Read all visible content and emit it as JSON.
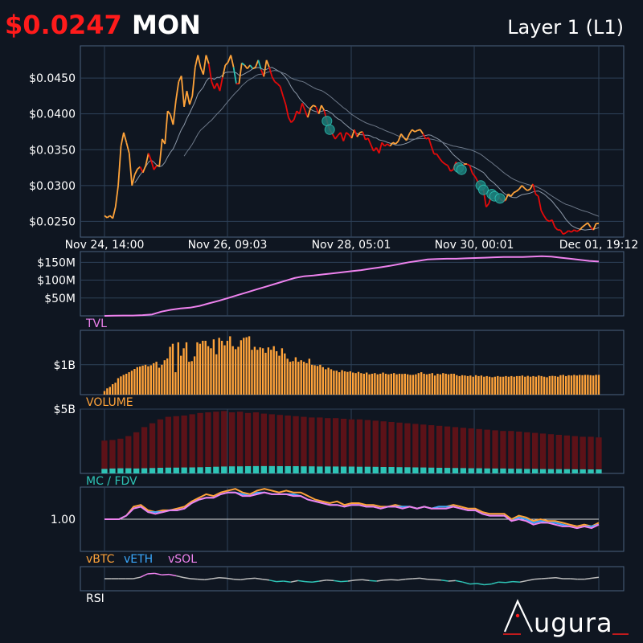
{
  "header": {
    "price": "$0.0247",
    "symbol": "MON",
    "category": "Layer 1 (L1)"
  },
  "brand": {
    "name": "ugura"
  },
  "colors": {
    "background": "#0f1621",
    "panel_border": "#4b6280",
    "grid": "#2f4259",
    "up": "#ffa33a",
    "down": "#e50a0a",
    "teal": "#2ec4b6",
    "tvl": "#ee82ee",
    "volume": "#ffa33a",
    "mc": "#5c1218",
    "fdv": "#2ec4b6",
    "vbtc": "#ffa33a",
    "veth": "#3aa9ff",
    "vsol": "#ee82ee",
    "rsi": "#bbbbbb",
    "price_red": "#ff1b1b"
  },
  "chart_data": [
    {
      "type": "line",
      "panel": "price",
      "x_ticks": [
        "Nov 24, 14:00",
        "Nov 26, 09:03",
        "Nov 28, 05:01",
        "Nov 30, 00:01",
        "Dec 01, 19:12"
      ],
      "y_ticks": [
        "$0.0450",
        "$0.0400",
        "$0.0350",
        "$0.0300",
        "$0.0250"
      ],
      "ylim": [
        0.0228,
        0.0495
      ],
      "price": [
        0.0258,
        0.0255,
        0.0258,
        0.0254,
        0.027,
        0.03,
        0.0355,
        0.0374,
        0.036,
        0.0345,
        0.03,
        0.0315,
        0.0323,
        0.0326,
        0.0318,
        0.0328,
        0.0345,
        0.0335,
        0.0322,
        0.0328,
        0.0327,
        0.0365,
        0.0358,
        0.0404,
        0.0399,
        0.0385,
        0.0418,
        0.0445,
        0.0453,
        0.041,
        0.0432,
        0.0413,
        0.0425,
        0.0465,
        0.0482,
        0.0465,
        0.0455,
        0.0482,
        0.047,
        0.0445,
        0.0435,
        0.0443,
        0.0432,
        0.0451,
        0.0468,
        0.0472,
        0.0482,
        0.0465,
        0.0442,
        0.0442,
        0.0471,
        0.0468,
        0.0463,
        0.0468,
        0.0463,
        0.0465,
        0.0475,
        0.0462,
        0.0452,
        0.0475,
        0.0465,
        0.0452,
        0.0445,
        0.0442,
        0.0438,
        0.0425,
        0.0413,
        0.0395,
        0.0388,
        0.0392,
        0.0404,
        0.04,
        0.0415,
        0.0405,
        0.0395,
        0.0408,
        0.0412,
        0.041,
        0.04,
        0.0412,
        0.0405,
        0.039,
        0.0378,
        0.0372,
        0.0365,
        0.037,
        0.0374,
        0.0362,
        0.0374,
        0.0371,
        0.0366,
        0.0378,
        0.0368,
        0.0374,
        0.0375,
        0.0364,
        0.0366,
        0.0357,
        0.0348,
        0.0353,
        0.0345,
        0.036,
        0.0355,
        0.0358,
        0.0355,
        0.036,
        0.0358,
        0.0362,
        0.0372,
        0.0367,
        0.0363,
        0.0372,
        0.0378,
        0.0375,
        0.0377,
        0.0378,
        0.0372,
        0.0365,
        0.0367,
        0.0355,
        0.0344,
        0.0344,
        0.0338,
        0.0333,
        0.033,
        0.0328,
        0.032,
        0.0322,
        0.0333,
        0.0325,
        0.0322,
        0.033,
        0.033,
        0.0328,
        0.0317,
        0.0312,
        0.0305,
        0.03,
        0.0294,
        0.027,
        0.0275,
        0.0288,
        0.0285,
        0.0285,
        0.0282,
        0.0278,
        0.0279,
        0.0288,
        0.0285,
        0.029,
        0.0292,
        0.0295,
        0.03,
        0.0296,
        0.0293,
        0.0295,
        0.0302,
        0.0288,
        0.0285,
        0.0265,
        0.0258,
        0.0252,
        0.025,
        0.0252,
        0.0242,
        0.0238,
        0.0238,
        0.0232,
        0.0234,
        0.0237,
        0.0235,
        0.0238,
        0.0236,
        0.0238,
        0.0242,
        0.0245,
        0.0248,
        0.0242,
        0.0238,
        0.0247,
        0.0247
      ]
    },
    {
      "type": "area",
      "panel": "tvl",
      "label": "TVL",
      "y_ticks": [
        "$150M",
        "$100M",
        "$50M"
      ],
      "ylim": [
        0,
        180
      ],
      "values": [
        0,
        0.5,
        1,
        1,
        2,
        4,
        12,
        17,
        21,
        23,
        28,
        35,
        42,
        50,
        58,
        66,
        74,
        82,
        90,
        98,
        106,
        111,
        113,
        116,
        119,
        122,
        125,
        128,
        132,
        136,
        140,
        145,
        150,
        154,
        158,
        159,
        160,
        160,
        161,
        162,
        163,
        164,
        165,
        165,
        165,
        166,
        167,
        166,
        163,
        160,
        157,
        154,
        152
      ]
    },
    {
      "type": "bar",
      "panel": "volume",
      "label": "VOLUME",
      "y_ticks": [
        "$1B"
      ],
      "ylim": [
        0,
        2.15
      ],
      "values": [
        0.12,
        0.21,
        0.26,
        0.35,
        0.4,
        0.55,
        0.61,
        0.66,
        0.7,
        0.75,
        0.8,
        0.86,
        0.92,
        0.94,
        0.97,
        1.0,
        0.95,
        0.98,
        1.05,
        1.1,
        0.9,
        1.0,
        1.15,
        1.21,
        1.6,
        1.7,
        0.75,
        1.75,
        1.3,
        1.55,
        1.75,
        1.1,
        1.12,
        1.28,
        1.75,
        1.7,
        1.8,
        1.8,
        1.62,
        1.55,
        1.85,
        1.35,
        1.9,
        1.8,
        1.65,
        1.8,
        1.95,
        1.62,
        1.52,
        1.6,
        1.82,
        1.9,
        1.92,
        1.95,
        1.5,
        1.6,
        1.5,
        1.58,
        1.55,
        1.4,
        1.58,
        1.5,
        1.62,
        1.45,
        1.3,
        1.55,
        1.38,
        1.2,
        1.1,
        1.12,
        1.25,
        1.1,
        1.15,
        1.1,
        1.05,
        1.2,
        1.0,
        0.98,
        0.96,
        1.0,
        0.92,
        0.85,
        0.9,
        0.85,
        0.8,
        0.8,
        0.75,
        0.82,
        0.78,
        0.76,
        0.78,
        0.74,
        0.72,
        0.76,
        0.72,
        0.7,
        0.74,
        0.68,
        0.7,
        0.72,
        0.68,
        0.7,
        0.74,
        0.7,
        0.68,
        0.7,
        0.72,
        0.68,
        0.7,
        0.69,
        0.7,
        0.68,
        0.66,
        0.66,
        0.68,
        0.72,
        0.75,
        0.7,
        0.68,
        0.7,
        0.72,
        0.64,
        0.7,
        0.68,
        0.72,
        0.7,
        0.68,
        0.7,
        0.7,
        0.65,
        0.62,
        0.65,
        0.64,
        0.62,
        0.64,
        0.6,
        0.65,
        0.62,
        0.64,
        0.6,
        0.62,
        0.6,
        0.58,
        0.6,
        0.62,
        0.6,
        0.6,
        0.62,
        0.6,
        0.62,
        0.6,
        0.62,
        0.62,
        0.64,
        0.6,
        0.63,
        0.6,
        0.62,
        0.6,
        0.64,
        0.62,
        0.6,
        0.58,
        0.62,
        0.63,
        0.62,
        0.6,
        0.65,
        0.66,
        0.62,
        0.65,
        0.64,
        0.66,
        0.64,
        0.66,
        0.65,
        0.66,
        0.66,
        0.65,
        0.64,
        0.66,
        0.66
      ]
    },
    {
      "type": "bar",
      "panel": "mc_fdv",
      "label": "MC / FDV",
      "y_ticks": [
        "$5B"
      ],
      "ylim": [
        0,
        5.0
      ],
      "series": [
        {
          "name": "MC",
          "values": [
            0.35,
            0.38,
            0.4,
            0.4,
            0.38,
            0.4,
            0.42,
            0.44,
            0.45,
            0.45,
            0.46,
            0.47,
            0.48,
            0.5,
            0.52,
            0.54,
            0.55,
            0.55,
            0.56,
            0.57,
            0.57,
            0.57,
            0.56,
            0.56,
            0.56,
            0.55,
            0.55,
            0.54,
            0.54,
            0.54,
            0.53,
            0.53,
            0.52,
            0.52,
            0.51,
            0.5,
            0.5,
            0.49,
            0.48,
            0.47,
            0.46,
            0.45,
            0.44,
            0.43,
            0.42,
            0.41,
            0.4,
            0.4,
            0.39,
            0.38,
            0.38,
            0.37,
            0.36,
            0.35,
            0.35,
            0.34,
            0.34,
            0.33,
            0.33,
            0.32,
            0.32,
            0.31,
            0.31
          ]
        },
        {
          "name": "FDV",
          "values": [
            2.55,
            2.6,
            2.7,
            2.9,
            3.2,
            3.6,
            3.9,
            4.2,
            4.4,
            4.45,
            4.5,
            4.6,
            4.7,
            4.75,
            4.8,
            4.85,
            4.75,
            4.8,
            4.7,
            4.75,
            4.65,
            4.6,
            4.55,
            4.5,
            4.45,
            4.4,
            4.35,
            4.35,
            4.3,
            4.3,
            4.25,
            4.2,
            4.2,
            4.15,
            4.1,
            4.05,
            4.0,
            3.95,
            3.9,
            3.85,
            3.8,
            3.75,
            3.7,
            3.65,
            3.6,
            3.55,
            3.5,
            3.45,
            3.4,
            3.35,
            3.3,
            3.3,
            3.25,
            3.2,
            3.15,
            3.1,
            3.05,
            3.0,
            2.95,
            2.9,
            2.85,
            2.85,
            2.8
          ]
        }
      ]
    },
    {
      "type": "line",
      "panel": "relative",
      "y_ticks": [
        "1.00"
      ],
      "ylim": [
        0.82,
        1.18
      ],
      "series": [
        {
          "name": "vBTC",
          "values": [
            1.0,
            1.0,
            1.0,
            1.02,
            1.07,
            1.08,
            1.05,
            1.04,
            1.05,
            1.05,
            1.06,
            1.07,
            1.1,
            1.12,
            1.14,
            1.13,
            1.15,
            1.16,
            1.17,
            1.15,
            1.14,
            1.16,
            1.17,
            1.16,
            1.15,
            1.16,
            1.15,
            1.15,
            1.13,
            1.11,
            1.1,
            1.09,
            1.1,
            1.08,
            1.09,
            1.09,
            1.08,
            1.08,
            1.07,
            1.07,
            1.08,
            1.07,
            1.07,
            1.06,
            1.07,
            1.06,
            1.07,
            1.07,
            1.08,
            1.07,
            1.06,
            1.06,
            1.04,
            1.03,
            1.03,
            1.03,
            1.0,
            1.02,
            1.01,
            0.99,
            1.0,
            0.99,
            0.99,
            0.98,
            0.97,
            0.96,
            0.97,
            0.96,
            0.98
          ]
        },
        {
          "name": "vETH",
          "values": [
            1.0,
            1.0,
            1.0,
            1.02,
            1.06,
            1.07,
            1.04,
            1.04,
            1.04,
            1.05,
            1.05,
            1.06,
            1.09,
            1.11,
            1.12,
            1.12,
            1.14,
            1.15,
            1.15,
            1.14,
            1.13,
            1.15,
            1.15,
            1.14,
            1.14,
            1.14,
            1.14,
            1.13,
            1.11,
            1.1,
            1.09,
            1.08,
            1.08,
            1.07,
            1.08,
            1.08,
            1.07,
            1.07,
            1.06,
            1.07,
            1.07,
            1.07,
            1.07,
            1.06,
            1.07,
            1.06,
            1.07,
            1.07,
            1.07,
            1.06,
            1.05,
            1.05,
            1.03,
            1.02,
            1.02,
            1.02,
            0.99,
            1.01,
            1.0,
            0.98,
            0.99,
            0.98,
            0.98,
            0.97,
            0.96,
            0.95,
            0.96,
            0.96,
            0.97
          ]
        },
        {
          "name": "vSOL",
          "values": [
            1.0,
            1.0,
            1.0,
            1.02,
            1.06,
            1.07,
            1.04,
            1.03,
            1.04,
            1.05,
            1.05,
            1.06,
            1.09,
            1.11,
            1.12,
            1.12,
            1.14,
            1.15,
            1.15,
            1.13,
            1.13,
            1.14,
            1.15,
            1.14,
            1.14,
            1.14,
            1.13,
            1.13,
            1.11,
            1.1,
            1.09,
            1.08,
            1.08,
            1.07,
            1.08,
            1.08,
            1.07,
            1.07,
            1.06,
            1.07,
            1.07,
            1.06,
            1.07,
            1.06,
            1.07,
            1.06,
            1.06,
            1.06,
            1.07,
            1.06,
            1.05,
            1.05,
            1.03,
            1.02,
            1.02,
            1.02,
            0.99,
            1.0,
            0.99,
            0.97,
            0.98,
            0.98,
            0.97,
            0.96,
            0.96,
            0.95,
            0.96,
            0.95,
            0.97
          ]
        }
      ]
    },
    {
      "type": "line",
      "panel": "rsi",
      "label": "RSI",
      "ylim": [
        0,
        100
      ],
      "values": [
        50,
        50,
        50,
        50,
        50,
        56,
        70,
        72,
        66,
        68,
        62,
        55,
        50,
        48,
        46,
        50,
        54,
        52,
        48,
        46,
        50,
        52,
        48,
        44,
        38,
        40,
        36,
        42,
        38,
        36,
        40,
        44,
        42,
        38,
        40,
        44,
        46,
        42,
        40,
        44,
        46,
        44,
        48,
        50,
        52,
        48,
        46,
        44,
        40,
        42,
        36,
        28,
        30,
        25,
        28,
        36,
        34,
        38,
        36,
        42,
        48,
        50,
        52,
        54,
        50,
        50,
        48,
        48,
        52,
        56
      ]
    }
  ],
  "labels": {
    "tvl": "TVL",
    "volume": "VOLUME",
    "mc_fdv": "MC / FDV",
    "vbtc": "vBTC",
    "veth": "vETH",
    "vsol": "vSOL",
    "rsi": "RSI"
  }
}
